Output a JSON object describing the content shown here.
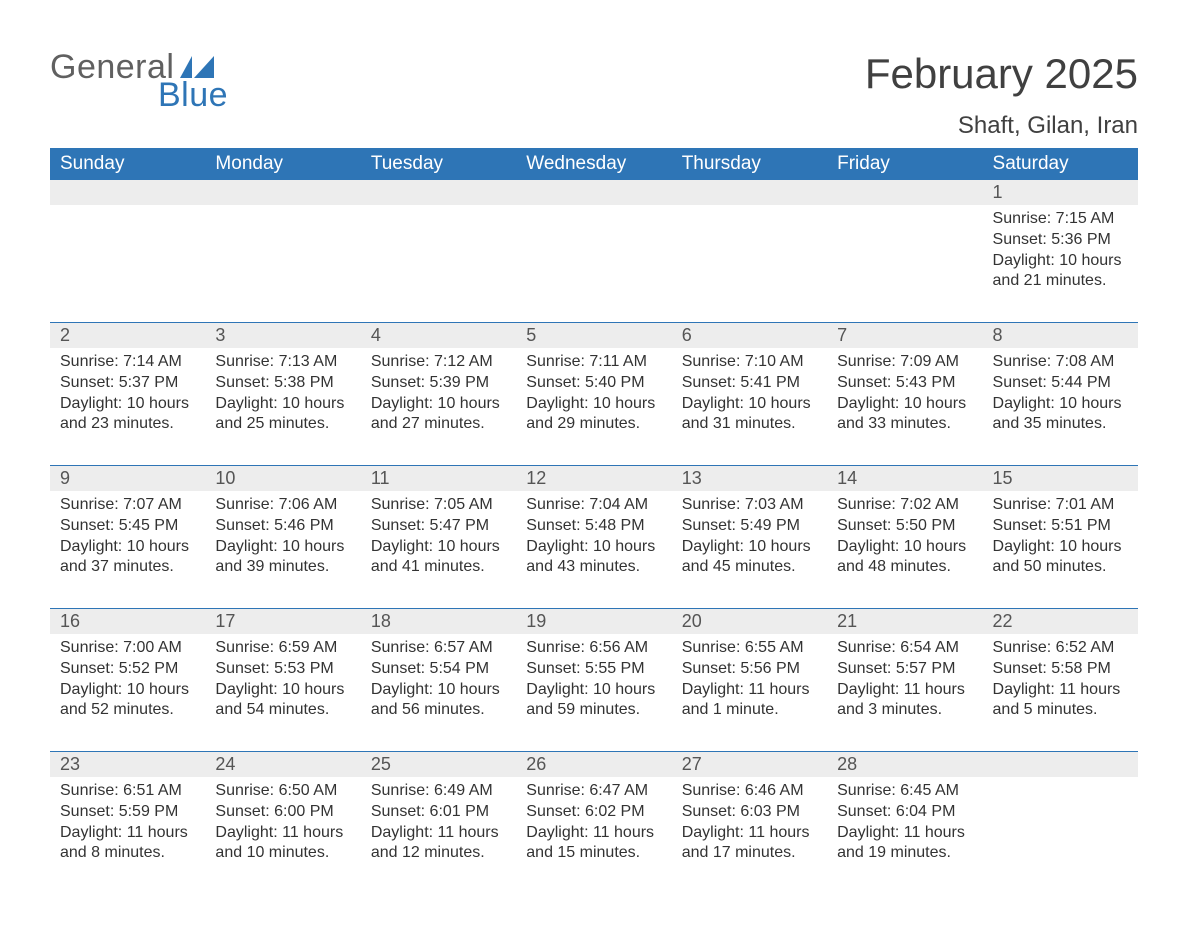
{
  "logo": {
    "text1": "General",
    "text2": "Blue",
    "flag_color": "#2e75b6"
  },
  "title": "February 2025",
  "location": "Shaft, Gilan, Iran",
  "colors": {
    "header_bg": "#2e75b6",
    "header_text": "#ffffff",
    "daynum_bg": "#ededed",
    "rule": "#2e75b6",
    "text": "#333333"
  },
  "day_headers": [
    "Sunday",
    "Monday",
    "Tuesday",
    "Wednesday",
    "Thursday",
    "Friday",
    "Saturday"
  ],
  "weeks": [
    [
      null,
      null,
      null,
      null,
      null,
      null,
      {
        "n": "1",
        "sr": "Sunrise: 7:15 AM",
        "ss": "Sunset: 5:36 PM",
        "dl": "Daylight: 10 hours and 21 minutes."
      }
    ],
    [
      {
        "n": "2",
        "sr": "Sunrise: 7:14 AM",
        "ss": "Sunset: 5:37 PM",
        "dl": "Daylight: 10 hours and 23 minutes."
      },
      {
        "n": "3",
        "sr": "Sunrise: 7:13 AM",
        "ss": "Sunset: 5:38 PM",
        "dl": "Daylight: 10 hours and 25 minutes."
      },
      {
        "n": "4",
        "sr": "Sunrise: 7:12 AM",
        "ss": "Sunset: 5:39 PM",
        "dl": "Daylight: 10 hours and 27 minutes."
      },
      {
        "n": "5",
        "sr": "Sunrise: 7:11 AM",
        "ss": "Sunset: 5:40 PM",
        "dl": "Daylight: 10 hours and 29 minutes."
      },
      {
        "n": "6",
        "sr": "Sunrise: 7:10 AM",
        "ss": "Sunset: 5:41 PM",
        "dl": "Daylight: 10 hours and 31 minutes."
      },
      {
        "n": "7",
        "sr": "Sunrise: 7:09 AM",
        "ss": "Sunset: 5:43 PM",
        "dl": "Daylight: 10 hours and 33 minutes."
      },
      {
        "n": "8",
        "sr": "Sunrise: 7:08 AM",
        "ss": "Sunset: 5:44 PM",
        "dl": "Daylight: 10 hours and 35 minutes."
      }
    ],
    [
      {
        "n": "9",
        "sr": "Sunrise: 7:07 AM",
        "ss": "Sunset: 5:45 PM",
        "dl": "Daylight: 10 hours and 37 minutes."
      },
      {
        "n": "10",
        "sr": "Sunrise: 7:06 AM",
        "ss": "Sunset: 5:46 PM",
        "dl": "Daylight: 10 hours and 39 minutes."
      },
      {
        "n": "11",
        "sr": "Sunrise: 7:05 AM",
        "ss": "Sunset: 5:47 PM",
        "dl": "Daylight: 10 hours and 41 minutes."
      },
      {
        "n": "12",
        "sr": "Sunrise: 7:04 AM",
        "ss": "Sunset: 5:48 PM",
        "dl": "Daylight: 10 hours and 43 minutes."
      },
      {
        "n": "13",
        "sr": "Sunrise: 7:03 AM",
        "ss": "Sunset: 5:49 PM",
        "dl": "Daylight: 10 hours and 45 minutes."
      },
      {
        "n": "14",
        "sr": "Sunrise: 7:02 AM",
        "ss": "Sunset: 5:50 PM",
        "dl": "Daylight: 10 hours and 48 minutes."
      },
      {
        "n": "15",
        "sr": "Sunrise: 7:01 AM",
        "ss": "Sunset: 5:51 PM",
        "dl": "Daylight: 10 hours and 50 minutes."
      }
    ],
    [
      {
        "n": "16",
        "sr": "Sunrise: 7:00 AM",
        "ss": "Sunset: 5:52 PM",
        "dl": "Daylight: 10 hours and 52 minutes."
      },
      {
        "n": "17",
        "sr": "Sunrise: 6:59 AM",
        "ss": "Sunset: 5:53 PM",
        "dl": "Daylight: 10 hours and 54 minutes."
      },
      {
        "n": "18",
        "sr": "Sunrise: 6:57 AM",
        "ss": "Sunset: 5:54 PM",
        "dl": "Daylight: 10 hours and 56 minutes."
      },
      {
        "n": "19",
        "sr": "Sunrise: 6:56 AM",
        "ss": "Sunset: 5:55 PM",
        "dl": "Daylight: 10 hours and 59 minutes."
      },
      {
        "n": "20",
        "sr": "Sunrise: 6:55 AM",
        "ss": "Sunset: 5:56 PM",
        "dl": "Daylight: 11 hours and 1 minute."
      },
      {
        "n": "21",
        "sr": "Sunrise: 6:54 AM",
        "ss": "Sunset: 5:57 PM",
        "dl": "Daylight: 11 hours and 3 minutes."
      },
      {
        "n": "22",
        "sr": "Sunrise: 6:52 AM",
        "ss": "Sunset: 5:58 PM",
        "dl": "Daylight: 11 hours and 5 minutes."
      }
    ],
    [
      {
        "n": "23",
        "sr": "Sunrise: 6:51 AM",
        "ss": "Sunset: 5:59 PM",
        "dl": "Daylight: 11 hours and 8 minutes."
      },
      {
        "n": "24",
        "sr": "Sunrise: 6:50 AM",
        "ss": "Sunset: 6:00 PM",
        "dl": "Daylight: 11 hours and 10 minutes."
      },
      {
        "n": "25",
        "sr": "Sunrise: 6:49 AM",
        "ss": "Sunset: 6:01 PM",
        "dl": "Daylight: 11 hours and 12 minutes."
      },
      {
        "n": "26",
        "sr": "Sunrise: 6:47 AM",
        "ss": "Sunset: 6:02 PM",
        "dl": "Daylight: 11 hours and 15 minutes."
      },
      {
        "n": "27",
        "sr": "Sunrise: 6:46 AM",
        "ss": "Sunset: 6:03 PM",
        "dl": "Daylight: 11 hours and 17 minutes."
      },
      {
        "n": "28",
        "sr": "Sunrise: 6:45 AM",
        "ss": "Sunset: 6:04 PM",
        "dl": "Daylight: 11 hours and 19 minutes."
      },
      null
    ]
  ]
}
